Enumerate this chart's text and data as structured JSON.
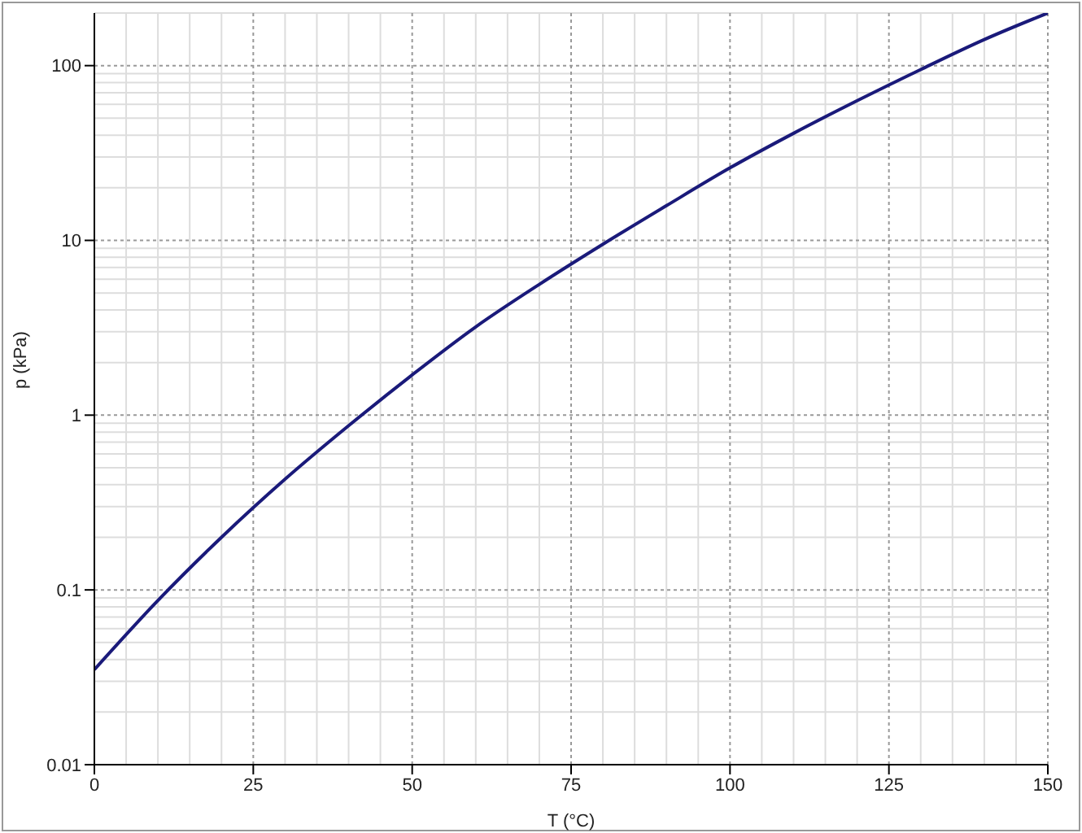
{
  "chart_data": {
    "type": "line",
    "xlabel": "T (°C)",
    "ylabel": "p (kPa)",
    "x": [
      0,
      10,
      20,
      30,
      40,
      50,
      60,
      70,
      80,
      90,
      100,
      110,
      120,
      130,
      140,
      150
    ],
    "series": [
      {
        "color": "#1a1a7a",
        "values": [
          0.035,
          0.087,
          0.2,
          0.43,
          0.87,
          1.7,
          3.2,
          5.6,
          9.5,
          15.8,
          26,
          41,
          63,
          95,
          141,
          200
        ]
      }
    ],
    "xlim": [
      0,
      150
    ],
    "xticks": [
      0,
      25,
      50,
      75,
      100,
      125,
      150
    ],
    "ylim": [
      0.01,
      200
    ],
    "yticks": [
      0.01,
      0.1,
      1,
      10,
      100
    ],
    "log": "y",
    "grid": true,
    "marker": "none",
    "line_style": "solid"
  }
}
